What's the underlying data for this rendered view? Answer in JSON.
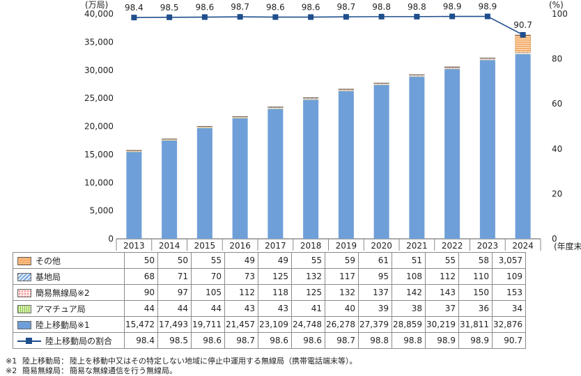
{
  "chart_data": {
    "type": "bar",
    "stacked": true,
    "categories": [
      "2013",
      "2014",
      "2015",
      "2016",
      "2017",
      "2018",
      "2019",
      "2020",
      "2021",
      "2022",
      "2023",
      "2024"
    ],
    "x_extra_label": "(年度末)",
    "y_left": {
      "unit": "(万局)",
      "min": 0,
      "max": 40000,
      "ticks": [
        "0",
        "5,000",
        "10,000",
        "15,000",
        "20,000",
        "25,000",
        "30,000",
        "35,000",
        "40,000"
      ]
    },
    "y_right": {
      "unit": "(%)",
      "min": 0,
      "max": 100,
      "ticks": [
        "0",
        "20",
        "40",
        "60",
        "80",
        "100"
      ]
    },
    "series": [
      {
        "name": "陸上移動局※1",
        "key": "mobile",
        "color": "#6f9fd8",
        "values": [
          15472,
          17493,
          19711,
          21457,
          23109,
          24748,
          26278,
          27379,
          28859,
          30219,
          31811,
          32876
        ],
        "labels": [
          "15,472",
          "17,493",
          "19,711",
          "21,457",
          "23,109",
          "24,748",
          "26,278",
          "27,379",
          "28,859",
          "30,219",
          "31,811",
          "32,876"
        ]
      },
      {
        "name": "アマチュア局",
        "key": "amateur",
        "color": "#8cc63f",
        "values": [
          44,
          44,
          44,
          43,
          43,
          41,
          40,
          39,
          38,
          37,
          36,
          34
        ],
        "labels": [
          "44",
          "44",
          "44",
          "43",
          "43",
          "41",
          "40",
          "39",
          "38",
          "37",
          "36",
          "34"
        ]
      },
      {
        "name": "簡易無線局※2",
        "key": "simple",
        "color": "#f28b8b",
        "values": [
          90,
          97,
          105,
          112,
          118,
          125,
          132,
          137,
          142,
          143,
          150,
          153
        ],
        "labels": [
          "90",
          "97",
          "105",
          "112",
          "118",
          "125",
          "132",
          "137",
          "142",
          "143",
          "150",
          "153"
        ]
      },
      {
        "name": "基地局",
        "key": "base",
        "color": "#6b9bd6",
        "values": [
          68,
          71,
          70,
          73,
          125,
          132,
          117,
          95,
          108,
          112,
          110,
          109
        ],
        "labels": [
          "68",
          "71",
          "70",
          "73",
          "125",
          "132",
          "117",
          "95",
          "108",
          "112",
          "110",
          "109"
        ]
      },
      {
        "name": "その他",
        "key": "other",
        "color": "#f7c08a",
        "values": [
          50,
          50,
          55,
          49,
          49,
          55,
          59,
          61,
          51,
          55,
          58,
          3057
        ],
        "labels": [
          "50",
          "50",
          "55",
          "49",
          "49",
          "55",
          "59",
          "61",
          "51",
          "55",
          "58",
          "3,057"
        ]
      }
    ],
    "line_series": {
      "name": "陸上移動局の割合",
      "color": "#1f4e8c",
      "axis": "right",
      "values": [
        98.4,
        98.5,
        98.6,
        98.7,
        98.6,
        98.6,
        98.7,
        98.8,
        98.8,
        98.9,
        98.9,
        90.7
      ],
      "labels": [
        "98.4",
        "98.5",
        "98.6",
        "98.7",
        "98.6",
        "98.6",
        "98.7",
        "98.8",
        "98.8",
        "98.9",
        "98.9",
        "90.7"
      ]
    },
    "table_row_order": [
      "other",
      "base",
      "simple",
      "amateur",
      "mobile",
      "ratio"
    ]
  },
  "notes": [
    {
      "mark": "※1",
      "term": "陸上移動局：",
      "text": "陸上を移動中又はその特定しない地域に停止中運用する無線局（携帯電話端末等）。"
    },
    {
      "mark": "※2",
      "term": "簡易無線局：",
      "text": "簡易な無線通信を行う無線局。"
    }
  ]
}
